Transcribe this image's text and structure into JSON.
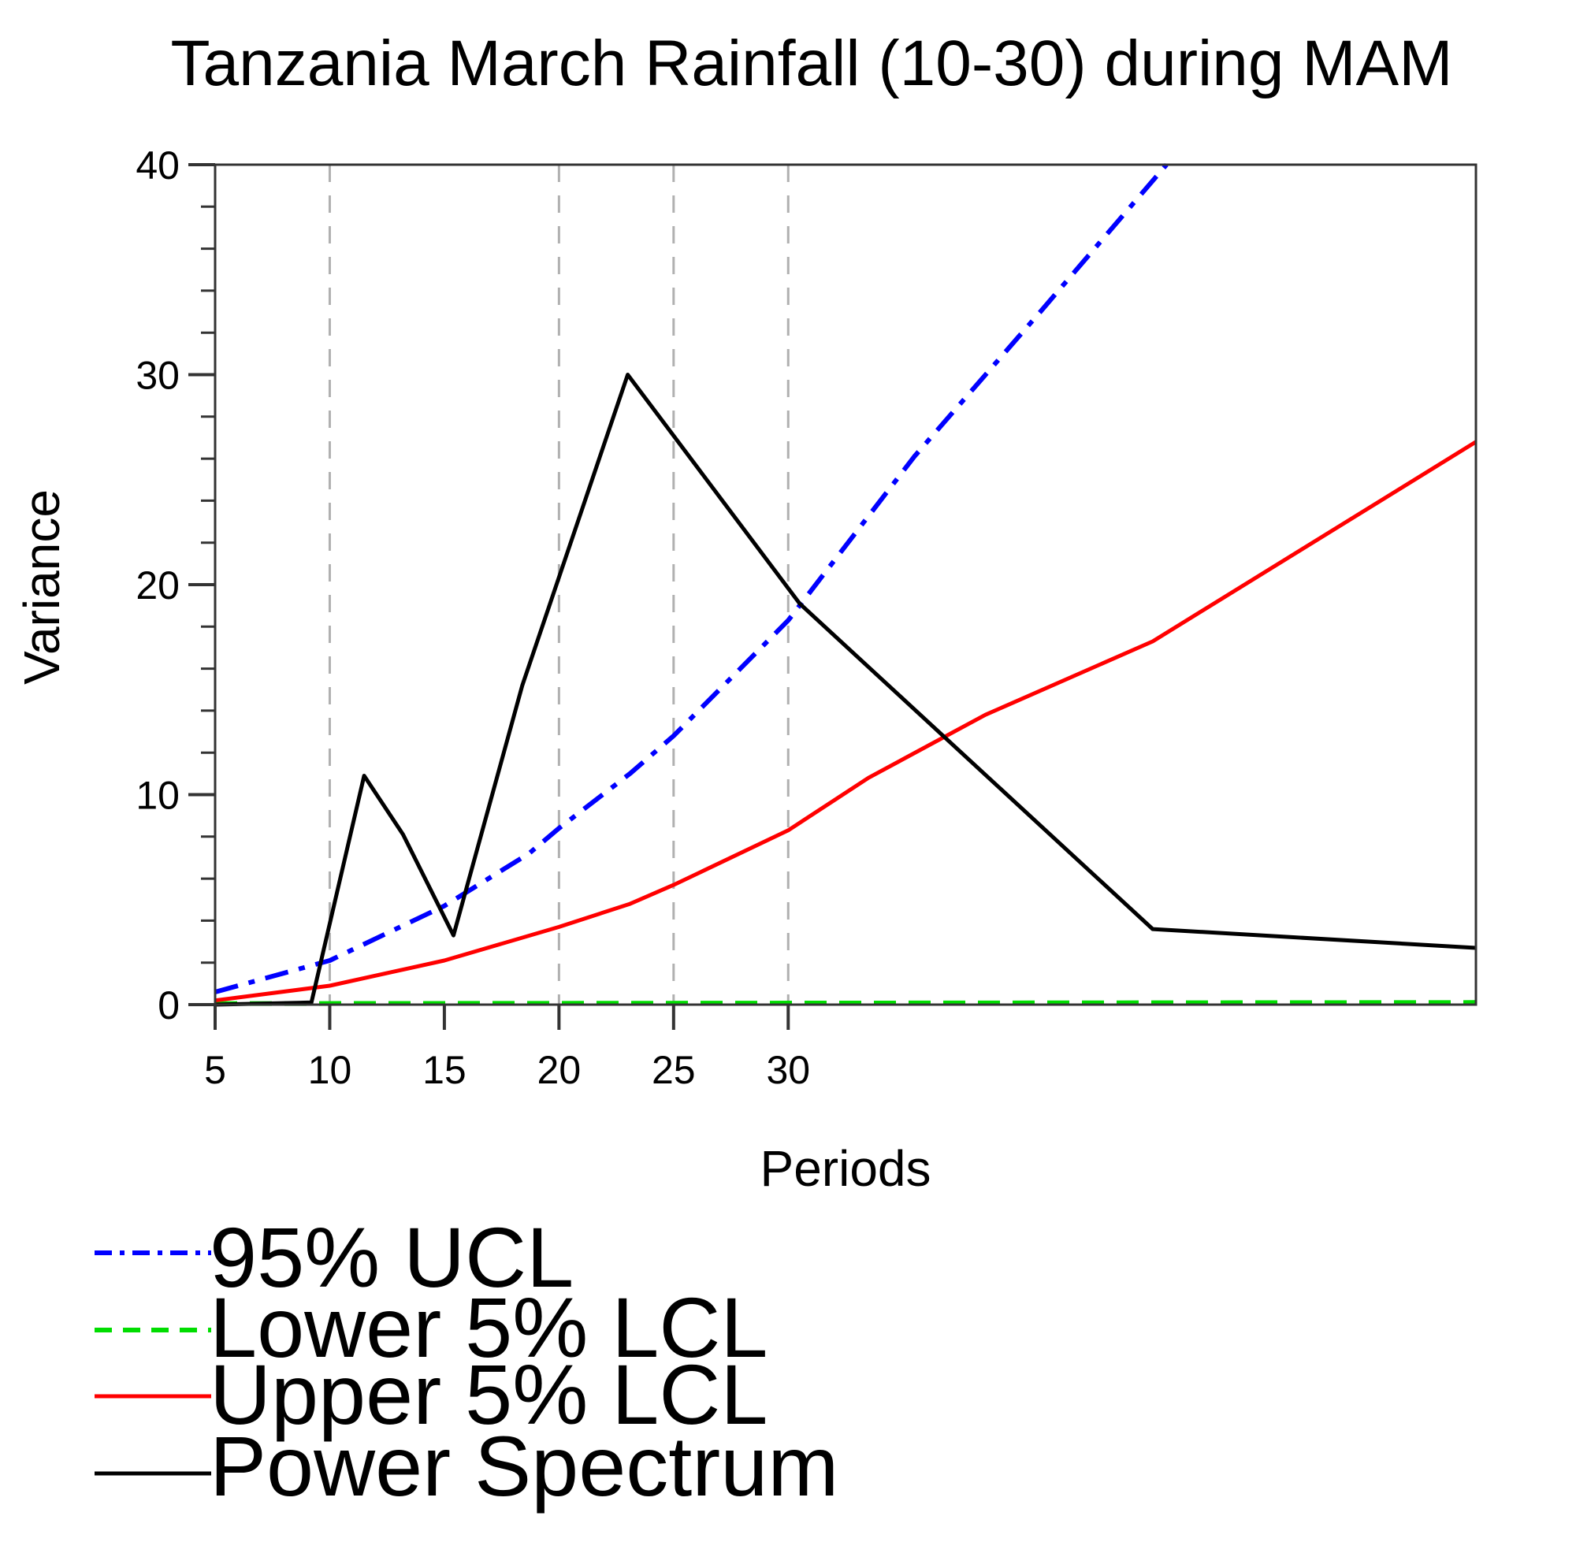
{
  "chart_data": {
    "type": "line",
    "title": "Tanzania March Rainfall (10-30) during MAM",
    "xlabel": "Periods",
    "ylabel": "Variance",
    "xlim": [
      5,
      60
    ],
    "ylim": [
      0,
      40
    ],
    "x_ticks": [
      5,
      10,
      15,
      20,
      25,
      30
    ],
    "x_tick_labels": [
      "5",
      "10",
      "15",
      "20",
      "25",
      "30"
    ],
    "y_ticks": [
      0,
      10,
      20,
      30,
      40
    ],
    "y_tick_labels": [
      "0",
      "10",
      "20",
      "30",
      "40"
    ],
    "y_minor_step": 2,
    "reference_lines_x": [
      10,
      20,
      25,
      30
    ],
    "grid": false,
    "legend_position": "bottom-left",
    "series": [
      {
        "name": "95% UCL",
        "color": "#0000ff",
        "style": "dash-dot",
        "x": [
          5,
          10,
          15,
          18.7,
          20,
          23.1,
          25,
          30,
          35.5,
          41,
          46.5
        ],
        "y": [
          0.6,
          2.1,
          4.7,
          7.2,
          8.4,
          11.0,
          12.8,
          18.3,
          26.1,
          33.0,
          40.0
        ]
      },
      {
        "name": "Lower 5% LCL",
        "color": "#00dd00",
        "style": "dashed",
        "x": [
          5,
          60
        ],
        "y": [
          0.05,
          0.1
        ]
      },
      {
        "name": "Upper 5% LCL",
        "color": "#ff0000",
        "style": "solid",
        "x": [
          5,
          10,
          15,
          20,
          23.1,
          25,
          30,
          33.5,
          38.6,
          45.9,
          60
        ],
        "y": [
          0.2,
          0.9,
          2.1,
          3.7,
          4.8,
          5.7,
          8.3,
          10.8,
          13.8,
          17.3,
          26.8
        ]
      },
      {
        "name": "Power Spectrum",
        "color": "#000000",
        "style": "solid",
        "x": [
          5,
          9.2,
          11.5,
          13.2,
          15.4,
          18.4,
          23,
          30.5,
          45.9,
          60
        ],
        "y": [
          0,
          0.1,
          10.9,
          8.1,
          3.3,
          15.2,
          30,
          19.1,
          3.6,
          2.7
        ]
      }
    ]
  }
}
